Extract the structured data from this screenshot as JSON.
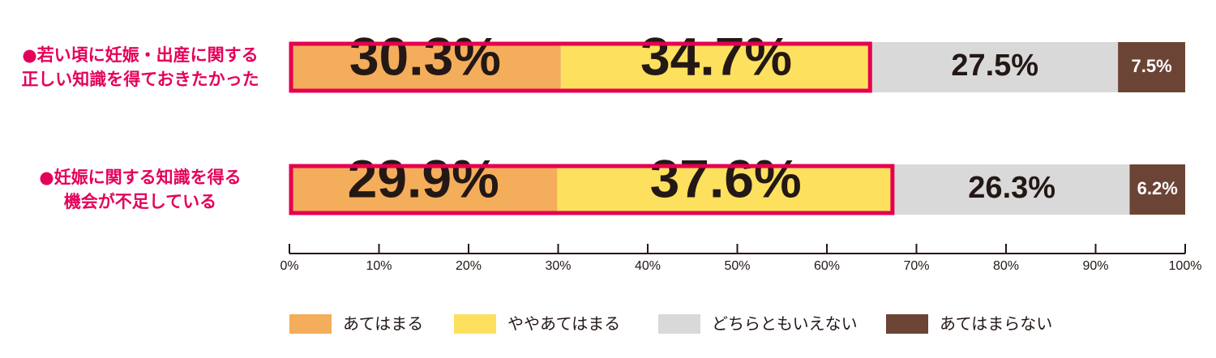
{
  "chart_data": {
    "type": "stacked-bar-horizontal",
    "categories": [
      "●若い頃に妊娠・出産に関する\n正しい知識を得ておきたかった",
      "●妊娠に関する知識を得る\n機会が不足している"
    ],
    "series": [
      {
        "name": "あてはまる",
        "color": "#f4ad5a",
        "values": [
          30.3,
          29.9
        ],
        "value_labels": [
          "30.3%",
          "29.9%"
        ],
        "label_color": "#231815"
      },
      {
        "name": "ややあてはまる",
        "color": "#fde05e",
        "values": [
          34.7,
          37.6
        ],
        "value_labels": [
          "34.7%",
          "37.6%"
        ],
        "label_color": "#231815"
      },
      {
        "name": "どちらともいえない",
        "color": "#d9d9d9",
        "values": [
          27.5,
          26.3
        ],
        "value_labels": [
          "27.5%",
          "26.3%"
        ],
        "label_color": "#231815"
      },
      {
        "name": "あてはまらない",
        "color": "#6c4435",
        "values": [
          7.5,
          6.2
        ],
        "value_labels": [
          "7.5%",
          "6.2%"
        ],
        "label_color": "#ffffff"
      }
    ],
    "highlight_color": "#e4004f",
    "xlim": [
      0,
      100
    ],
    "xticks": [
      {
        "value": 0,
        "label": "0%"
      },
      {
        "value": 10,
        "label": "10%"
      },
      {
        "value": 20,
        "label": "20%"
      },
      {
        "value": 30,
        "label": "30%"
      },
      {
        "value": 40,
        "label": "40%"
      },
      {
        "value": 50,
        "label": "50%"
      },
      {
        "value": 60,
        "label": "60%"
      },
      {
        "value": 70,
        "label": "70%"
      },
      {
        "value": 80,
        "label": "80%"
      },
      {
        "value": 90,
        "label": "90%"
      },
      {
        "value": 100,
        "label": "100%"
      }
    ],
    "legend": "bottom"
  }
}
